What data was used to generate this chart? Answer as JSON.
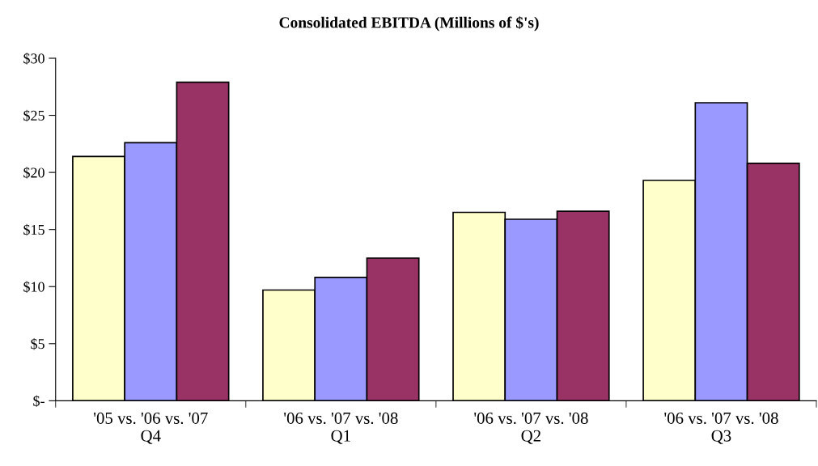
{
  "chart_data": {
    "type": "bar",
    "title": "Consolidated EBITDA (Millions of $'s)",
    "categories": [
      "'05 vs. '06 vs. '07\nQ4",
      "'06 vs. '07 vs. '08\nQ1",
      "'06 vs. '07 vs. '08\nQ2",
      "'06 vs. '07 vs. '08\nQ3"
    ],
    "series": [
      {
        "color": "#ffffcc",
        "values": [
          21.4,
          9.7,
          16.5,
          19.3
        ]
      },
      {
        "color": "#9999ff",
        "values": [
          22.6,
          10.8,
          15.9,
          26.1
        ]
      },
      {
        "color": "#993366",
        "values": [
          27.9,
          12.5,
          16.6,
          20.8
        ]
      }
    ],
    "ylim": [
      0,
      30
    ],
    "yticks": [
      {
        "value": 0,
        "label": "$-"
      },
      {
        "value": 5,
        "label": "$5"
      },
      {
        "value": 10,
        "label": "$10"
      },
      {
        "value": 15,
        "label": "$15"
      },
      {
        "value": 20,
        "label": "$20"
      },
      {
        "value": 25,
        "label": "$25"
      },
      {
        "value": 30,
        "label": "$30"
      }
    ],
    "grid": false
  }
}
